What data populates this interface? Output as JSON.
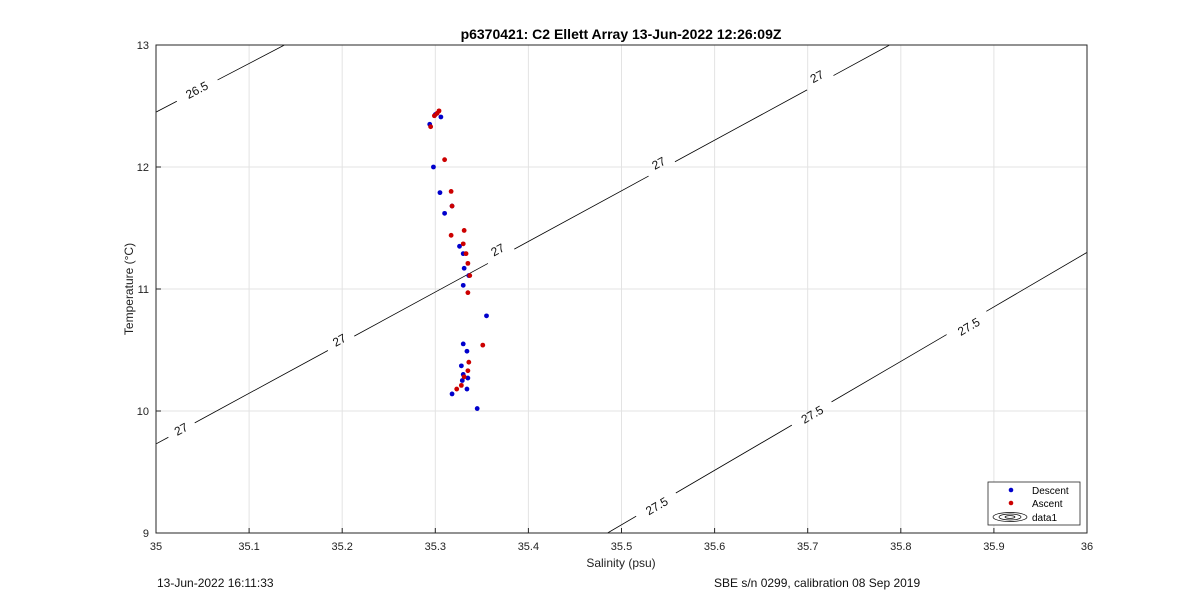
{
  "chart_data": {
    "type": "scatter",
    "title": "p6370421: C2 Ellett Array 13-Jun-2022 12:26:09Z",
    "xlabel": "Salinity (psu)",
    "ylabel": "Temperature (°C)",
    "xlim": [
      35,
      36
    ],
    "ylim": [
      9,
      13
    ],
    "x_ticks": [
      35,
      35.1,
      35.2,
      35.3,
      35.4,
      35.5,
      35.6,
      35.7,
      35.8,
      35.9,
      36
    ],
    "y_ticks": [
      9,
      10,
      11,
      12,
      13
    ],
    "x_tick_labels": [
      "35",
      "35.1",
      "35.2",
      "35.3",
      "35.4",
      "35.5",
      "35.6",
      "35.7",
      "35.8",
      "35.9",
      "36"
    ],
    "y_tick_labels": [
      "9",
      "10",
      "11",
      "12",
      "13"
    ],
    "grid": true,
    "legend_position": "bottom-right",
    "series": [
      {
        "name": "Descent",
        "color": "#0000cc",
        "points": [
          [
            35.306,
            12.41
          ],
          [
            35.3,
            12.43
          ],
          [
            35.294,
            12.35
          ],
          [
            35.298,
            12.0
          ],
          [
            35.305,
            11.79
          ],
          [
            35.31,
            11.62
          ],
          [
            35.318,
            11.68
          ],
          [
            35.326,
            11.35
          ],
          [
            35.33,
            11.29
          ],
          [
            35.331,
            11.17
          ],
          [
            35.336,
            11.11
          ],
          [
            35.33,
            11.03
          ],
          [
            35.355,
            10.78
          ],
          [
            35.33,
            10.55
          ],
          [
            35.334,
            10.49
          ],
          [
            35.328,
            10.37
          ],
          [
            35.33,
            10.3
          ],
          [
            35.335,
            10.27
          ],
          [
            35.329,
            10.25
          ],
          [
            35.334,
            10.18
          ],
          [
            35.318,
            10.14
          ],
          [
            35.345,
            10.02
          ]
        ]
      },
      {
        "name": "Ascent",
        "color": "#cc0000",
        "points": [
          [
            35.304,
            12.46
          ],
          [
            35.302,
            12.44
          ],
          [
            35.299,
            12.42
          ],
          [
            35.295,
            12.33
          ],
          [
            35.31,
            12.06
          ],
          [
            35.317,
            11.8
          ],
          [
            35.318,
            11.68
          ],
          [
            35.331,
            11.48
          ],
          [
            35.317,
            11.44
          ],
          [
            35.33,
            11.37
          ],
          [
            35.333,
            11.29
          ],
          [
            35.335,
            11.21
          ],
          [
            35.337,
            11.11
          ],
          [
            35.335,
            10.97
          ],
          [
            35.351,
            10.54
          ],
          [
            35.336,
            10.4
          ],
          [
            35.335,
            10.33
          ],
          [
            35.331,
            10.28
          ],
          [
            35.328,
            10.21
          ],
          [
            35.323,
            10.18
          ]
        ]
      }
    ],
    "contours": {
      "name": "data1",
      "levels": [
        {
          "value": 26.5,
          "segments": [
            [
              [
                35.0,
                12.45
              ],
              [
                35.138,
                13.0
              ]
            ]
          ],
          "labels": [
            {
              "text": "26.5",
              "s": 35.044,
              "t": 12.63
            }
          ]
        },
        {
          "value": 27,
          "segments": [
            [
              [
                35.0,
                9.73
              ],
              [
                35.788,
                13.0
              ]
            ]
          ],
          "labels": [
            {
              "text": "27",
              "s": 35.027,
              "t": 9.85
            },
            {
              "text": "27",
              "s": 35.197,
              "t": 10.58
            },
            {
              "text": "27",
              "s": 35.367,
              "t": 11.32
            },
            {
              "text": "27",
              "s": 35.54,
              "t": 12.03
            },
            {
              "text": "27",
              "s": 35.71,
              "t": 12.74
            }
          ]
        },
        {
          "value": 27.5,
          "segments": [
            [
              [
                35.485,
                9.0
              ],
              [
                36.0,
                11.3
              ]
            ]
          ],
          "labels": [
            {
              "text": "27.5",
              "s": 35.538,
              "t": 9.22
            },
            {
              "text": "27.5",
              "s": 35.705,
              "t": 9.97
            },
            {
              "text": "27.5",
              "s": 35.873,
              "t": 10.69
            }
          ]
        }
      ]
    }
  },
  "footer": {
    "timestamp": "13-Jun-2022 16:11:33",
    "sensor_info": "SBE s/n 0299, calibration 08 Sep 2019"
  }
}
